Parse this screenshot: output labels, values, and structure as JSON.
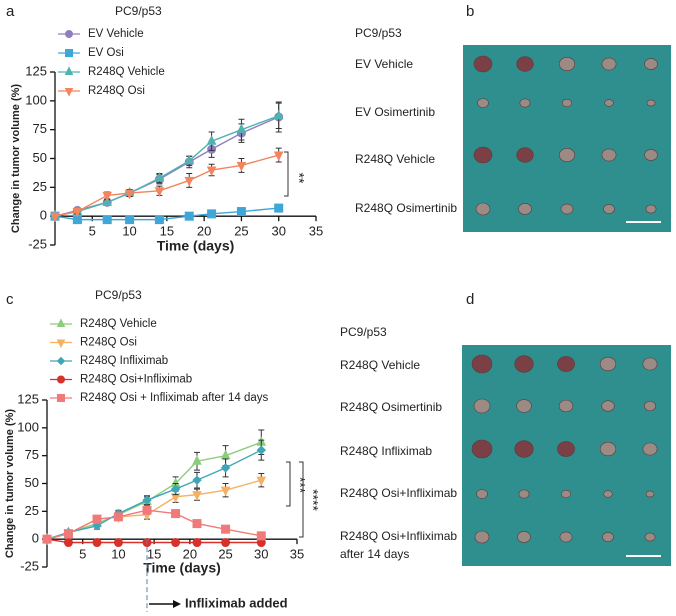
{
  "panel_labels": [
    "a",
    "b",
    "c",
    "d"
  ],
  "chart_data": [
    {
      "type": "line",
      "title": "PC9/p53",
      "xlabel": "Time (days)",
      "ylabel": "Change in tumor volume (%)",
      "x": [
        0,
        3,
        7,
        10,
        14,
        18,
        21,
        25,
        30
      ],
      "xlim": [
        0,
        35
      ],
      "xticks": [
        5,
        10,
        15,
        20,
        25,
        30,
        35
      ],
      "ylim": [
        -25,
        125
      ],
      "yticks": [
        -25,
        0,
        25,
        50,
        75,
        100,
        125
      ],
      "series": [
        {
          "name": "EV Vehicle",
          "color": "#8f7fc0",
          "marker": "circle",
          "values": [
            0,
            5,
            12,
            20,
            32,
            47,
            58,
            72,
            86
          ],
          "errors": [
            0,
            2,
            2,
            3,
            4,
            5,
            7,
            8,
            13
          ]
        },
        {
          "name": "EV Osi",
          "color": "#3fa6d8",
          "marker": "square",
          "values": [
            0,
            -3,
            -3,
            -3,
            -3,
            0,
            2,
            4,
            7
          ],
          "errors": [
            0,
            1,
            1,
            1,
            1,
            1,
            1,
            1,
            1
          ]
        },
        {
          "name": "R248Q Vehicle",
          "color": "#4fb3b0",
          "marker": "triangle-up",
          "values": [
            0,
            4,
            12,
            20,
            33,
            48,
            65,
            75,
            87
          ],
          "errors": [
            0,
            2,
            2,
            3,
            4,
            4,
            8,
            9,
            11
          ]
        },
        {
          "name": "R248Q Osi",
          "color": "#f2855e",
          "marker": "triangle-down",
          "values": [
            0,
            4,
            18,
            20,
            22,
            31,
            40,
            44,
            53
          ],
          "errors": [
            0,
            2,
            3,
            3,
            4,
            6,
            5,
            6,
            6
          ]
        }
      ],
      "annotations": [
        {
          "text": "**"
        }
      ]
    },
    {
      "type": "line",
      "title": "PC9/p53",
      "xlabel": "Time (days)",
      "ylabel": "Change in tumor volume (%)",
      "x": [
        0,
        3,
        7,
        10,
        14,
        18,
        21,
        25,
        30
      ],
      "xlim": [
        0,
        35
      ],
      "xticks": [
        5,
        10,
        15,
        20,
        25,
        30,
        35
      ],
      "ylim": [
        -25,
        125
      ],
      "yticks": [
        -25,
        0,
        25,
        50,
        75,
        100,
        125
      ],
      "series": [
        {
          "name": "R248Q Vehicle",
          "color": "#8ccc7e",
          "marker": "triangle-up",
          "values": [
            0,
            6,
            14,
            22,
            34,
            50,
            70,
            75,
            87
          ],
          "errors": [
            0,
            2,
            3,
            3,
            4,
            6,
            8,
            9,
            11
          ]
        },
        {
          "name": "R248Q Osi",
          "color": "#f5b062",
          "marker": "triangle-down",
          "values": [
            0,
            5,
            18,
            20,
            22,
            38,
            40,
            44,
            53
          ],
          "errors": [
            0,
            2,
            3,
            3,
            4,
            5,
            5,
            6,
            6
          ]
        },
        {
          "name": "R248Q Infliximab",
          "color": "#3fa6b8",
          "marker": "diamond",
          "values": [
            0,
            6,
            12,
            23,
            35,
            45,
            53,
            64,
            80
          ],
          "errors": [
            0,
            2,
            3,
            3,
            4,
            5,
            7,
            8,
            9
          ]
        },
        {
          "name": "R248Q Osi+Infliximab",
          "color": "#d6312a",
          "marker": "circle",
          "values": [
            0,
            -3,
            -3,
            -3,
            -3,
            -3,
            -3,
            -3,
            -3
          ],
          "errors": [
            0,
            1,
            1,
            1,
            1,
            1,
            1,
            1,
            1
          ]
        },
        {
          "name": "R248Q Osi + Infliximab after 14 days",
          "color": "#f07a7a",
          "marker": "square",
          "values": [
            0,
            5,
            18,
            20,
            26,
            23,
            14,
            9,
            3
          ],
          "errors": [
            0,
            1,
            1,
            1,
            2,
            2,
            2,
            2,
            2
          ]
        }
      ],
      "annotations": [
        {
          "text": "***"
        },
        {
          "text": "****"
        },
        {
          "text": "Infliximab added"
        }
      ]
    }
  ],
  "photos": [
    {
      "title": "PC9/p53",
      "labels": [
        "EV Vehicle",
        "EV Osimertinib",
        "R248Q Vehicle",
        "R248Q Osimertinib"
      ]
    },
    {
      "title": "PC9/p53",
      "labels": [
        "R248Q Vehicle",
        "R248Q Osimertinib",
        "R248Q Infliximab",
        "R248Q Osi+Infliximab",
        "R248Q Osi+Infliximab",
        "after 14 days"
      ]
    }
  ]
}
